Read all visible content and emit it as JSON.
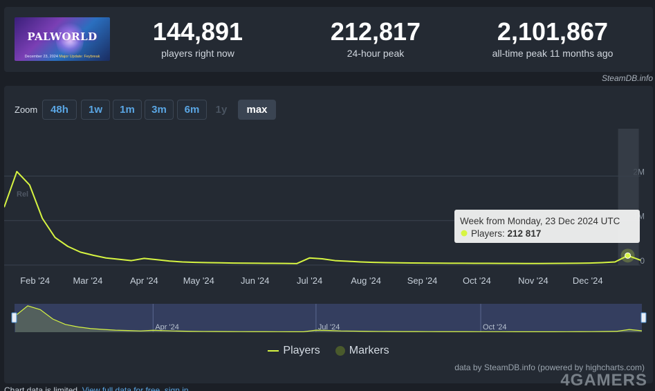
{
  "game": {
    "thumbnail_title": "PALWORLD",
    "thumbnail_date": "December 23, 2024",
    "thumbnail_update": "Major Update: Feybreak"
  },
  "stats": [
    {
      "value": "144,891",
      "label": "players right now"
    },
    {
      "value": "212,817",
      "label": "24-hour peak"
    },
    {
      "value": "2,101,867",
      "label": "all-time peak 11 months ago"
    }
  ],
  "source_credit": "SteamDB.info",
  "zoom": {
    "label": "Zoom",
    "options": [
      {
        "label": "48h",
        "state": "normal"
      },
      {
        "label": "1w",
        "state": "normal"
      },
      {
        "label": "1m",
        "state": "normal"
      },
      {
        "label": "3m",
        "state": "normal"
      },
      {
        "label": "6m",
        "state": "normal"
      },
      {
        "label": "1y",
        "state": "disabled"
      },
      {
        "label": "max",
        "state": "active"
      }
    ]
  },
  "tooltip": {
    "header": "Week from Monday, 23 Dec 2024 UTC",
    "series": "Players: ",
    "value": "212 817"
  },
  "legend": {
    "players": "Players",
    "markers": "Markers"
  },
  "credit": "data by SteamDB.info (powered by highcharts.com)",
  "watermark": "4GAMERS",
  "footer": {
    "text": "Chart data is limited. ",
    "link": "View full data for free, sign in."
  },
  "colors": {
    "series": "#d7f542",
    "accent": "#5aa6e4",
    "marker": "#4a5a2c"
  },
  "chart_data": {
    "type": "line",
    "x_unit": "date (weekly)",
    "x": [
      "2024-01-15",
      "2024-01-22",
      "2024-01-29",
      "2024-02-05",
      "2024-02-12",
      "2024-02-19",
      "2024-02-26",
      "2024-03-04",
      "2024-03-11",
      "2024-03-18",
      "2024-03-25",
      "2024-04-01",
      "2024-04-08",
      "2024-04-15",
      "2024-04-22",
      "2024-04-29",
      "2024-05-06",
      "2024-05-13",
      "2024-05-20",
      "2024-05-27",
      "2024-06-03",
      "2024-06-10",
      "2024-06-17",
      "2024-06-24",
      "2024-07-01",
      "2024-07-08",
      "2024-07-15",
      "2024-07-22",
      "2024-07-29",
      "2024-08-05",
      "2024-08-12",
      "2024-08-19",
      "2024-08-26",
      "2024-09-02",
      "2024-09-09",
      "2024-09-16",
      "2024-09-23",
      "2024-09-30",
      "2024-10-07",
      "2024-10-14",
      "2024-10-21",
      "2024-10-28",
      "2024-11-04",
      "2024-11-11",
      "2024-11-18",
      "2024-11-25",
      "2024-12-02",
      "2024-12-09",
      "2024-12-16",
      "2024-12-23",
      "2024-12-30"
    ],
    "series": [
      {
        "name": "Players",
        "values": [
          1300000,
          2101867,
          1800000,
          1050000,
          620000,
          420000,
          290000,
          220000,
          160000,
          130000,
          100000,
          150000,
          120000,
          90000,
          70000,
          60000,
          55000,
          50000,
          45000,
          42000,
          40000,
          38000,
          36000,
          34000,
          160000,
          140000,
          100000,
          85000,
          70000,
          60000,
          55000,
          50000,
          47000,
          45000,
          43000,
          41000,
          40000,
          39000,
          38000,
          37000,
          36000,
          35000,
          35000,
          36000,
          38000,
          40000,
          45000,
          55000,
          70000,
          212817,
          110000
        ]
      }
    ],
    "y_ticks": [
      "2M",
      "1M",
      "0"
    ],
    "ylim": [
      0,
      2100000
    ],
    "x_tick_labels": [
      "Feb '24",
      "Mar '24",
      "Apr '24",
      "May '24",
      "Jun '24",
      "Jul '24",
      "Aug '24",
      "Sep '24",
      "Oct '24",
      "Nov '24",
      "Dec '24"
    ],
    "x_tick_dates": [
      "2024-02-01",
      "2024-03-01",
      "2024-04-01",
      "2024-05-01",
      "2024-06-01",
      "2024-07-01",
      "2024-08-01",
      "2024-09-01",
      "2024-10-01",
      "2024-11-01",
      "2024-12-01"
    ],
    "navigator_labels": [
      "Apr '24",
      "Jul '24",
      "Oct '24"
    ],
    "navigator_dates": [
      "2024-04-01",
      "2024-07-01",
      "2024-10-01"
    ],
    "highlighted_date": "2024-12-23",
    "faint_label": "Rel",
    "grid": true,
    "legend_position": "bottom-center"
  }
}
